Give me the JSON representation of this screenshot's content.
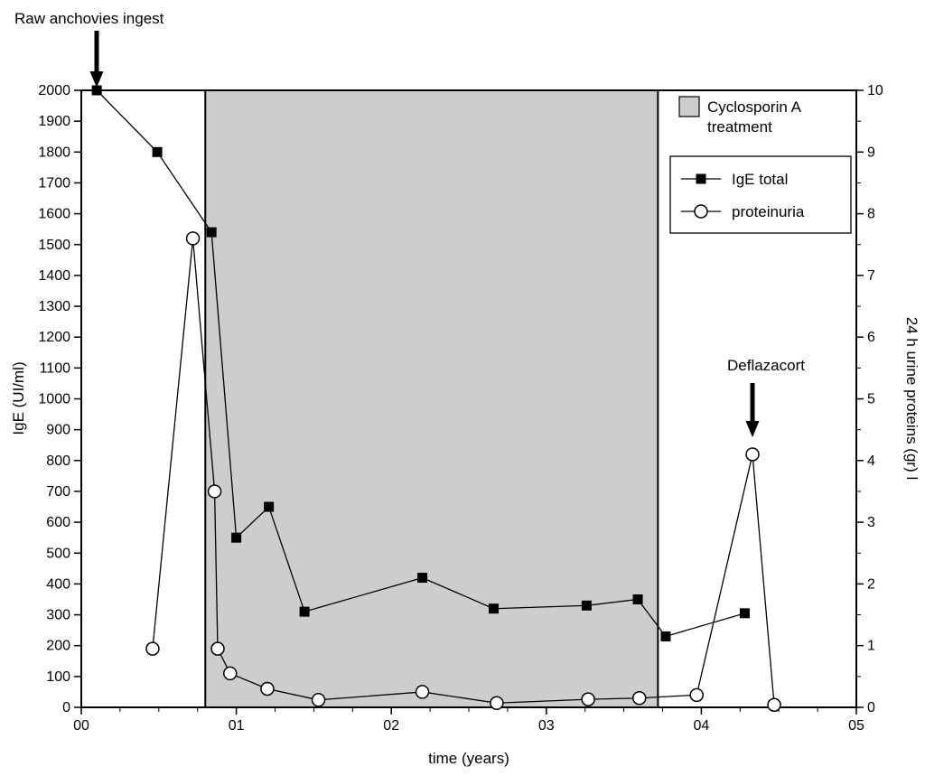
{
  "chart_data": {
    "type": "line",
    "title": "",
    "xlabel": "time (years)",
    "xlim": [
      0,
      5
    ],
    "x_tick_values": [
      0,
      1,
      2,
      3,
      4,
      5
    ],
    "x_tick_labels": [
      "00",
      "01",
      "02",
      "03",
      "04",
      "05"
    ],
    "x_minor_step": 0.25,
    "left_axis": {
      "label": "IgE (UI/ml)",
      "lim": [
        0,
        2000
      ],
      "tick_step": 100
    },
    "right_axis": {
      "label": "24 h urine proteins (gr) l",
      "lim": [
        0,
        10
      ],
      "tick_step": 1,
      "minor_step": 0.5
    },
    "grid": false,
    "shaded_region": {
      "x0": 0.8,
      "x1": 3.72,
      "color": "#cdcdcd",
      "label_line1": "Cyclosporin A",
      "label_line2": "treatment"
    },
    "series": [
      {
        "name": "IgE total",
        "axis": "left",
        "marker": "square",
        "color": "#000000",
        "points": [
          [
            0.1,
            2000
          ],
          [
            0.49,
            1800
          ],
          [
            0.84,
            1540
          ],
          [
            1.0,
            550
          ],
          [
            1.21,
            650
          ],
          [
            1.44,
            310
          ],
          [
            2.2,
            420
          ],
          [
            2.66,
            320
          ],
          [
            3.26,
            330
          ],
          [
            3.59,
            350
          ],
          [
            3.77,
            230
          ],
          [
            4.28,
            305
          ]
        ]
      },
      {
        "name": "proteinuria",
        "axis": "right",
        "marker": "circle",
        "color": "#000000",
        "points": [
          [
            0.46,
            0.95
          ],
          [
            0.72,
            7.6
          ],
          [
            0.86,
            3.5
          ],
          [
            0.88,
            0.95
          ],
          [
            0.96,
            0.55
          ],
          [
            1.2,
            0.3
          ],
          [
            1.53,
            0.12
          ],
          [
            2.2,
            0.25
          ],
          [
            2.68,
            0.07
          ],
          [
            3.27,
            0.13
          ],
          [
            3.6,
            0.15
          ],
          [
            3.97,
            0.2
          ],
          [
            4.33,
            4.1
          ],
          [
            4.47,
            0.04
          ]
        ]
      }
    ],
    "annotations": [
      {
        "id": "raw-anchovies",
        "text": "Raw anchovies ingest",
        "x": 0.1
      },
      {
        "id": "deflazacort",
        "text": "Deflazacort",
        "x": 4.33
      }
    ],
    "legend_position": "top-right"
  }
}
